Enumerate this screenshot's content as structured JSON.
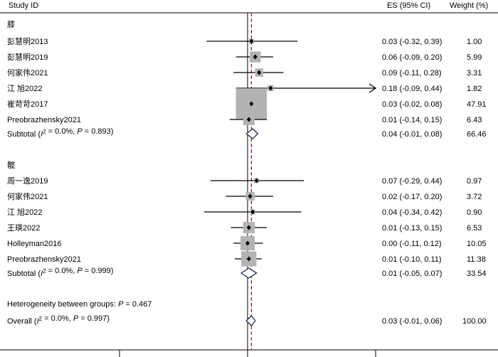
{
  "header": {
    "study_col": "Study ID",
    "es_col": "ES (95% CI)",
    "weight_col": "Weight (%)"
  },
  "chart_data": {
    "type": "forest",
    "xlim": [
      -1,
      1
    ],
    "null_line": 0,
    "overall_es": 0.03,
    "groups": [
      {
        "label": "膝",
        "studies": [
          {
            "name": "彭慧明2013",
            "es": 0.03,
            "lo": -0.32,
            "hi": 0.39,
            "ci_text": "0.03 (-0.32, 0.39)",
            "weight": "1.00",
            "arrow": false
          },
          {
            "name": "彭慧明2019",
            "es": 0.06,
            "lo": -0.09,
            "hi": 0.2,
            "ci_text": "0.06 (-0.09, 0.20)",
            "weight": "5.99",
            "arrow": false
          },
          {
            "name": "何家伟2021",
            "es": 0.09,
            "lo": -0.11,
            "hi": 0.28,
            "ci_text": "0.09 (-0.11, 0.28)",
            "weight": "3.31",
            "arrow": false
          },
          {
            "name": "江 旭2022",
            "es": 0.18,
            "lo": -0.09,
            "hi": 0.44,
            "ci_text": "0.18 (-0.09, 0.44)",
            "weight": "1.82",
            "arrow": true
          },
          {
            "name": "崔苛苛2017",
            "es": 0.03,
            "lo": -0.02,
            "hi": 0.08,
            "ci_text": "0.03 (-0.02, 0.08)",
            "weight": "47.91",
            "arrow": false
          },
          {
            "name": "Preobrazhensky2021",
            "es": 0.01,
            "lo": -0.14,
            "hi": 0.15,
            "ci_text": "0.01 (-0.14, 0.15)",
            "weight": "6.43",
            "arrow": false
          }
        ],
        "subtotal": {
          "label_prefix": "Subtotal  (",
          "i2_symbol": "I",
          "i2_sup": "2",
          "i2_value": " = 0.0%, ",
          "p_symbol": "P",
          "p_value": " = 0.893)",
          "es": 0.04,
          "lo": -0.01,
          "hi": 0.08,
          "ci_text": "0.04 (-0.01, 0.08)",
          "weight": "66.46"
        }
      },
      {
        "label": "髋",
        "studies": [
          {
            "name": "周一逸2019",
            "es": 0.07,
            "lo": -0.29,
            "hi": 0.44,
            "ci_text": "0.07 (-0.29, 0.44)",
            "weight": "0.97",
            "arrow": false
          },
          {
            "name": "何家伟2021",
            "es": 0.02,
            "lo": -0.17,
            "hi": 0.2,
            "ci_text": "0.02 (-0.17, 0.20)",
            "weight": "3.72",
            "arrow": false
          },
          {
            "name": "江 旭2022",
            "es": 0.04,
            "lo": -0.34,
            "hi": 0.42,
            "ci_text": "0.04 (-0.34, 0.42)",
            "weight": "0.90",
            "arrow": false
          },
          {
            "name": "王瑛2022",
            "es": 0.01,
            "lo": -0.13,
            "hi": 0.15,
            "ci_text": "0.01 (-0.13, 0.15)",
            "weight": "6.53",
            "arrow": false
          },
          {
            "name": "Holleyman2016",
            "es": 0.0,
            "lo": -0.11,
            "hi": 0.12,
            "ci_text": "0.00 (-0.11, 0.12)",
            "weight": "10.05",
            "arrow": false
          },
          {
            "name": "Preobrazhensky2021",
            "es": 0.01,
            "lo": -0.1,
            "hi": 0.11,
            "ci_text": "0.01 (-0.10, 0.11)",
            "weight": "11.38",
            "arrow": false
          }
        ],
        "subtotal": {
          "label_prefix": "Subtotal  (",
          "i2_symbol": "I",
          "i2_sup": "2",
          "i2_value": " = 0.0%, ",
          "p_symbol": "P",
          "p_value": " = 0.999)",
          "es": 0.01,
          "lo": -0.05,
          "hi": 0.07,
          "ci_text": "0.01 (-0.05, 0.07)",
          "weight": "33.54"
        }
      }
    ],
    "heterogeneity": {
      "prefix": "Heterogeneity between groups: ",
      "p_symbol": "P",
      "p_value": " = 0.467"
    },
    "overall": {
      "label_prefix": "Overall  (",
      "i2_symbol": "I",
      "i2_sup": "2",
      "i2_value": " = 0.0%, ",
      "p_symbol": "P",
      "p_value": " = 0.997)",
      "es": 0.03,
      "lo": -0.01,
      "hi": 0.06,
      "ci_text": "0.03 (-0.01, 0.06)",
      "weight": "100.00"
    },
    "colors": {
      "box": "#b3b3b3",
      "diamond": "#1f2d5c",
      "ref_line": "#8b1a1a"
    }
  }
}
